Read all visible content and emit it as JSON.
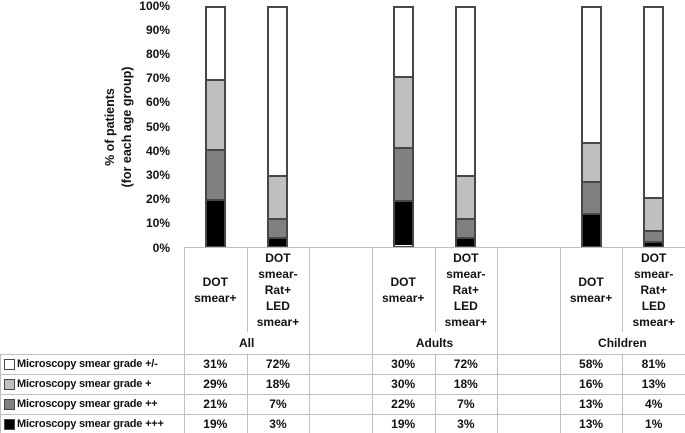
{
  "chart_data": {
    "type": "bar",
    "stacked": true,
    "title": "",
    "ylabel": "% of patients\n(for each age group)",
    "yticks": [
      "100%",
      "90%",
      "80%",
      "70%",
      "60%",
      "50%",
      "40%",
      "30%",
      "20%",
      "10%",
      "0%"
    ],
    "ylim": [
      0,
      100
    ],
    "grid": "off",
    "legend_position": "table-left-column",
    "groups": [
      "All",
      "Adults",
      "Children"
    ],
    "bar_labels": [
      "DOT\nsmear+",
      "DOT\nsmear-\nRat+\nLED\nsmear+"
    ],
    "value_suffix": "%",
    "series": [
      {
        "name": "Microscopy smear grade +/-",
        "color": "#FFFFFF",
        "values": [
          31,
          72,
          30,
          72,
          58,
          81
        ]
      },
      {
        "name": "Microscopy smear grade +",
        "color": "#BFBFBF",
        "values": [
          29,
          18,
          30,
          18,
          16,
          13
        ]
      },
      {
        "name": "Microscopy smear grade ++",
        "color": "#808080",
        "values": [
          21,
          7,
          22,
          7,
          13,
          4
        ]
      },
      {
        "name": "Microscopy smear grade +++",
        "color": "#000000",
        "values": [
          19,
          3,
          19,
          3,
          13,
          1
        ]
      }
    ],
    "colors": {
      "bar_border": "#474747",
      "grid_line": "#BFBFBF",
      "text": "#111111"
    }
  }
}
